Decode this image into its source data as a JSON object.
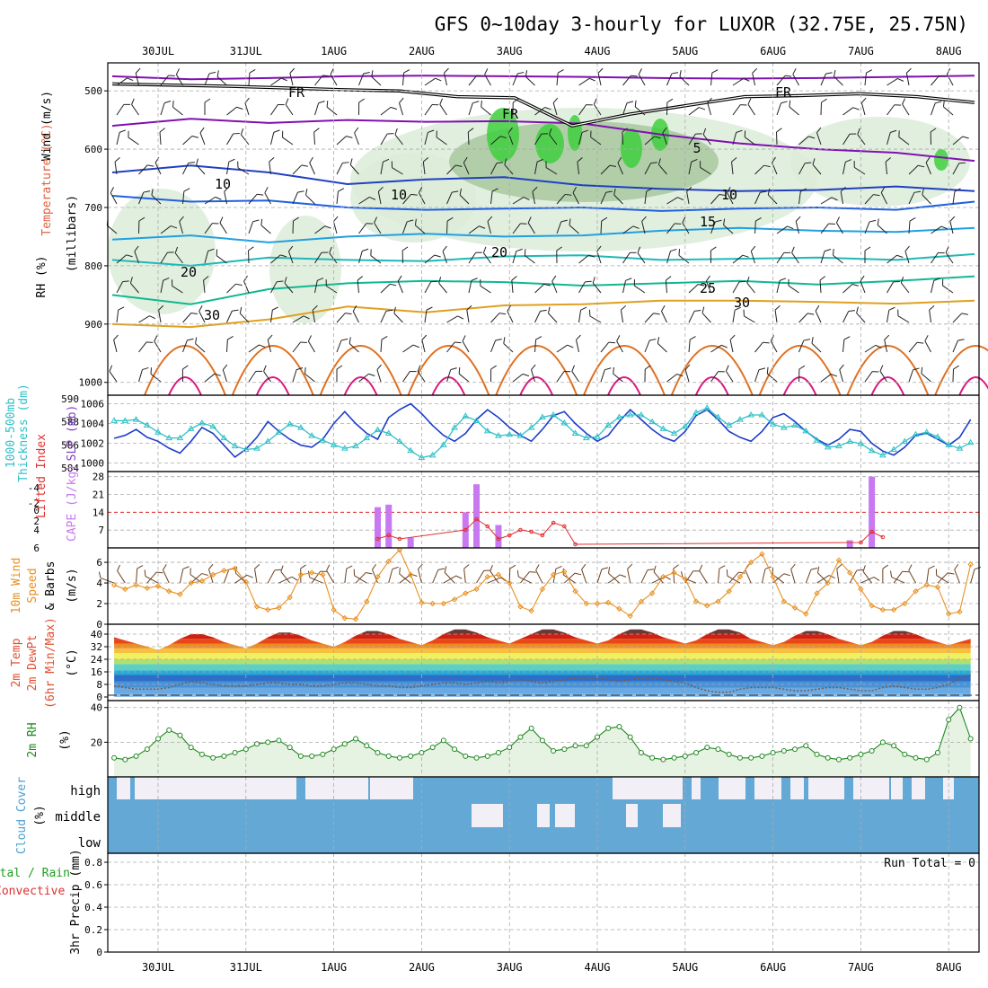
{
  "title": "GFS 0~10day 3-hourly for LUXOR (32.75E, 25.75N)",
  "dates": [
    "30JUL",
    "31JUL",
    "1AUG",
    "2AUG",
    "3AUG",
    "4AUG",
    "5AUG",
    "6AUG",
    "7AUG",
    "8AUG"
  ],
  "colors": {
    "rh_fill": "#dcecd9",
    "rh_fill_mid": "#a8c8a0",
    "rh_fill_high": "#3fcf3f",
    "slp_line": "#1e3ec8",
    "thickness_line": "#30c0c8",
    "cape_bar": "#c878f0",
    "lifted_index": "#e03030",
    "wind_speed": "#e89020",
    "rh2m_line": "#208820",
    "cloud_clear": "#64a8d6",
    "cloud_cover": "#f2f0f6",
    "freezing_level": "#000000"
  },
  "panels": {
    "upper_air": {
      "labels": [
        "Wind (m/s)",
        "Temperature (°C)",
        "RH (%)",
        "(millibars)"
      ],
      "y_ticks": [
        "500",
        "600",
        "700",
        "800",
        "900",
        "1000"
      ],
      "isotherm_labels": [
        "FR",
        "FR",
        "FR",
        "5",
        "10",
        "10",
        "10",
        "15",
        "20",
        "20",
        "25",
        "30",
        "30"
      ]
    },
    "pressure": {
      "labels": [
        "1000-500mb",
        "Thickness (dm)",
        "SLP (mb)"
      ],
      "thickness_ticks": [
        "590",
        "588",
        "586",
        "584"
      ],
      "slp_ticks": [
        "1006",
        "1004",
        "1002",
        "1000"
      ]
    },
    "instability": {
      "labels": [
        "Lifted Index",
        "CAPE (J/kg)"
      ],
      "li_ticks": [
        "-4",
        "-2",
        "0",
        "2",
        "4",
        "6"
      ],
      "cape_ticks": [
        "28",
        "21",
        "14",
        "7"
      ]
    },
    "wind10m": {
      "labels": [
        "10m Wind",
        "Speed",
        "& Barbs",
        "(m/s)"
      ],
      "y_ticks": [
        "6",
        "4",
        "2",
        "0"
      ]
    },
    "temp2m": {
      "labels": [
        "2m Temp",
        "2m DewPt",
        "(6hr Min/Max)",
        "(°C)"
      ],
      "y_ticks": [
        "40",
        "32",
        "24",
        "16",
        "8",
        "0"
      ]
    },
    "rh2m": {
      "labels": [
        "2m RH",
        "(%)"
      ],
      "y_ticks": [
        "40",
        "20"
      ]
    },
    "cloud": {
      "labels": [
        "Cloud Cover",
        "(%)"
      ],
      "levels": [
        "high",
        "middle",
        "low"
      ]
    },
    "precip": {
      "labels": [
        "Total / Rain",
        "Convective",
        "3hr Precip (mm)"
      ],
      "y_ticks": [
        "0.8",
        "0.6",
        "0.4",
        "0.2",
        "0"
      ],
      "run_total": "Run Total = 0"
    }
  },
  "chart_data": [
    {
      "type": "line",
      "title": "1000-500mb Thickness (dm) / SLP (mb)",
      "x": [
        "29JUL12",
        "29JUL15",
        "29JUL18",
        "29JUL21",
        "30JUL00",
        "30JUL03",
        "30JUL06",
        "30JUL09",
        "30JUL12",
        "30JUL15",
        "30JUL18",
        "30JUL21",
        "31JUL00",
        "31JUL03",
        "31JUL06",
        "31JUL09",
        "31JUL12",
        "31JUL15",
        "31JUL18",
        "31JUL21",
        "1AUG00",
        "1AUG03",
        "1AUG06",
        "1AUG09",
        "1AUG12",
        "1AUG15",
        "1AUG18",
        "1AUG21",
        "2AUG00",
        "2AUG03",
        "2AUG06",
        "2AUG09",
        "2AUG12",
        "2AUG15",
        "2AUG18",
        "2AUG21",
        "3AUG00",
        "3AUG03",
        "3AUG06",
        "3AUG09",
        "3AUG12",
        "3AUG15",
        "3AUG18",
        "3AUG21",
        "4AUG00",
        "4AUG03",
        "4AUG06",
        "4AUG09",
        "4AUG12",
        "4AUG15",
        "4AUG18",
        "4AUG21",
        "5AUG00",
        "5AUG03",
        "5AUG06",
        "5AUG09",
        "5AUG12",
        "5AUG15",
        "5AUG18",
        "5AUG21",
        "6AUG00",
        "6AUG03",
        "6AUG06",
        "6AUG09",
        "6AUG12",
        "6AUG15",
        "6AUG18",
        "6AUG21",
        "7AUG00",
        "7AUG03",
        "7AUG06",
        "7AUG09",
        "7AUG12",
        "7AUG15",
        "7AUG18",
        "7AUG21",
        "8AUG00",
        "8AUG03",
        "8AUG06"
      ],
      "series": [
        {
          "name": "SLP (mb)",
          "values": [
            1002.5,
            1002.8,
            1003.4,
            1002.6,
            1002.2,
            1001.5,
            1001.0,
            1002.2,
            1003.6,
            1003.0,
            1001.8,
            1000.6,
            1001.4,
            1002.6,
            1004.2,
            1003.2,
            1002.4,
            1001.8,
            1001.6,
            1002.4,
            1004.0,
            1005.2,
            1004.0,
            1003.0,
            1002.4,
            1004.6,
            1005.4,
            1006.0,
            1005.0,
            1003.8,
            1002.8,
            1002.2,
            1003.0,
            1004.4,
            1005.4,
            1004.6,
            1003.6,
            1002.8,
            1002.2,
            1003.4,
            1004.8,
            1005.2,
            1004.0,
            1003.0,
            1002.2,
            1002.8,
            1004.2,
            1005.4,
            1004.4,
            1003.4,
            1002.6,
            1002.2,
            1003.2,
            1004.8,
            1005.4,
            1004.4,
            1003.2,
            1002.6,
            1002.2,
            1003.2,
            1004.6,
            1005.0,
            1004.2,
            1003.2,
            1002.4,
            1001.8,
            1002.4,
            1003.4,
            1003.2,
            1002.0,
            1001.2,
            1000.8,
            1001.6,
            1002.8,
            1003.0,
            1002.4,
            1001.8,
            1002.6,
            1004.4
          ]
        },
        {
          "name": "1000-500mb Thickness (dm)",
          "values": [
            588.1,
            588.1,
            588.2,
            587.7,
            587.1,
            586.6,
            586.6,
            587.4,
            587.9,
            587.6,
            586.6,
            585.9,
            585.6,
            585.7,
            586.3,
            587.1,
            587.8,
            587.5,
            586.8,
            586.4,
            586.0,
            585.7,
            585.9,
            586.6,
            587.3,
            587.0,
            586.3,
            585.5,
            584.9,
            585.1,
            586.0,
            587.5,
            588.5,
            588.1,
            587.2,
            586.8,
            586.9,
            586.8,
            587.5,
            588.4,
            588.6,
            587.9,
            587.0,
            586.6,
            586.7,
            587.7,
            588.4,
            588.6,
            588.6,
            588.0,
            587.4,
            587.0,
            587.6,
            588.8,
            589.2,
            588.4,
            587.7,
            588.2,
            588.6,
            588.6,
            587.8,
            587.5,
            587.7,
            587.2,
            586.4,
            585.8,
            585.9,
            586.3,
            586.1,
            585.5,
            585.1,
            585.6,
            586.3,
            586.9,
            587.1,
            586.7,
            586.0,
            585.7,
            586.2
          ]
        }
      ],
      "ylabel": "Thickness (dm) / SLP (mb)"
    },
    {
      "type": "bar",
      "title": "CAPE (J/kg)",
      "x": [
        "2AUG12",
        "2AUG15",
        "2AUG21",
        "3AUG12",
        "3AUG15",
        "3AUG21",
        "8AUG00",
        "8AUG03"
      ],
      "values": [
        16,
        17,
        4,
        14,
        25,
        9,
        3,
        28
      ],
      "ylim": [
        0,
        28
      ]
    },
    {
      "type": "line",
      "title": "10m Wind Speed (m/s)",
      "x": [
        "29JUL12",
        "29JUL15",
        "29JUL18",
        "29JUL21",
        "30JUL00",
        "30JUL03",
        "30JUL06",
        "30JUL09",
        "30JUL12",
        "30JUL15",
        "30JUL18",
        "30JUL21",
        "31JUL00",
        "31JUL03",
        "31JUL06",
        "31JUL09",
        "31JUL12",
        "31JUL15",
        "31JUL18",
        "31JUL21",
        "1AUG00",
        "1AUG03",
        "1AUG06",
        "1AUG09",
        "1AUG12",
        "1AUG15",
        "1AUG18",
        "1AUG21",
        "2AUG00",
        "2AUG03",
        "2AUG06",
        "2AUG09",
        "2AUG12",
        "2AUG15",
        "2AUG18",
        "2AUG21",
        "3AUG00",
        "3AUG03",
        "3AUG06",
        "3AUG09",
        "3AUG12",
        "3AUG15",
        "3AUG18",
        "3AUG21",
        "4AUG00",
        "4AUG03",
        "4AUG06",
        "4AUG09",
        "4AUG12",
        "4AUG15",
        "4AUG18",
        "4AUG21",
        "5AUG00",
        "5AUG03",
        "5AUG06",
        "5AUG09",
        "5AUG12",
        "5AUG15",
        "5AUG18",
        "5AUG21",
        "6AUG00",
        "6AUG03",
        "6AUG06",
        "6AUG09",
        "6AUG12",
        "6AUG15",
        "6AUG18",
        "6AUG21",
        "7AUG00",
        "7AUG03",
        "7AUG06",
        "7AUG09",
        "7AUG12",
        "7AUG15",
        "7AUG18",
        "7AUG21",
        "8AUG00",
        "8AUG03",
        "8AUG06"
      ],
      "values": [
        3.8,
        3.4,
        3.8,
        3.5,
        3.7,
        3.2,
        2.9,
        4.0,
        4.2,
        4.8,
        5.2,
        5.4,
        4.1,
        1.7,
        1.4,
        1.6,
        2.6,
        4.8,
        5.0,
        4.8,
        1.4,
        0.6,
        0.5,
        2.2,
        4.6,
        6.1,
        7.2,
        4.8,
        2.1,
        2.0,
        2.0,
        2.4,
        3.0,
        3.4,
        4.6,
        4.8,
        4.0,
        1.7,
        1.3,
        3.4,
        4.8,
        5.1,
        3.2,
        2.0,
        2.0,
        2.1,
        1.5,
        0.8,
        2.2,
        3.0,
        4.6,
        5.0,
        4.4,
        2.2,
        1.8,
        2.2,
        3.2,
        4.6,
        6.0,
        6.8,
        4.6,
        2.2,
        1.6,
        1.0,
        3.0,
        4.0,
        6.2,
        5.0,
        3.4,
        1.8,
        1.4,
        1.4,
        2.0,
        3.2,
        3.8,
        3.6,
        1.0,
        1.2,
        5.8
      ],
      "ylim": [
        0,
        7
      ]
    },
    {
      "type": "line",
      "title": "2m Temp / 2m DewPt (°C)",
      "x": [
        "29JUL12",
        "29JUL15",
        "29JUL18",
        "29JUL21",
        "30JUL00",
        "30JUL03",
        "30JUL06",
        "30JUL09",
        "30JUL12",
        "30JUL15",
        "30JUL18",
        "30JUL21",
        "31JUL00",
        "31JUL03",
        "31JUL06",
        "31JUL09",
        "31JUL12",
        "31JUL15",
        "31JUL18",
        "31JUL21",
        "1AUG00",
        "1AUG03",
        "1AUG06",
        "1AUG09",
        "1AUG12",
        "1AUG15",
        "1AUG18",
        "1AUG21",
        "2AUG00",
        "2AUG03",
        "2AUG06",
        "2AUG09",
        "2AUG12",
        "2AUG15",
        "2AUG18",
        "2AUG21",
        "3AUG00",
        "3AUG03",
        "3AUG06",
        "3AUG09",
        "3AUG12",
        "3AUG15",
        "3AUG18",
        "3AUG21",
        "4AUG00",
        "4AUG03",
        "4AUG06",
        "4AUG09",
        "4AUG12",
        "4AUG15",
        "4AUG18",
        "4AUG21",
        "5AUG00",
        "5AUG03",
        "5AUG06",
        "5AUG09",
        "5AUG12",
        "5AUG15",
        "5AUG18",
        "5AUG21",
        "6AUG00",
        "6AUG03",
        "6AUG06",
        "6AUG09",
        "6AUG12",
        "6AUG15",
        "6AUG18",
        "6AUG21",
        "7AUG00",
        "7AUG03",
        "7AUG06",
        "7AUG09",
        "7AUG12",
        "7AUG15",
        "7AUG18",
        "7AUG21",
        "8AUG00",
        "8AUG03",
        "8AUG06"
      ],
      "series": [
        {
          "name": "2m Temp",
          "values": [
            38,
            36,
            34,
            32,
            30,
            33,
            37,
            40,
            40,
            38,
            35,
            33,
            31,
            34,
            38,
            41,
            41,
            39,
            36,
            34,
            32,
            35,
            39,
            42,
            42,
            40,
            37,
            35,
            33,
            36,
            40,
            43,
            43,
            41,
            38,
            36,
            34,
            37,
            40,
            43,
            43,
            41,
            38,
            36,
            34,
            36,
            40,
            43,
            43,
            41,
            38,
            36,
            34,
            36,
            40,
            43,
            43,
            41,
            37,
            35,
            33,
            35,
            39,
            42,
            42,
            40,
            37,
            35,
            33,
            35,
            39,
            42,
            42,
            40,
            37,
            35,
            33,
            35,
            37
          ]
        },
        {
          "name": "2m DewPt",
          "values": [
            7,
            6,
            5,
            5,
            5,
            6,
            8,
            10,
            9,
            8,
            7,
            7,
            7,
            8,
            9,
            9,
            8,
            8,
            7,
            7,
            8,
            9,
            9,
            8,
            7,
            7,
            6,
            6,
            7,
            8,
            9,
            9,
            8,
            9,
            10,
            9,
            10,
            11,
            10,
            9,
            10,
            11,
            12,
            12,
            12,
            11,
            10,
            11,
            12,
            12,
            11,
            10,
            9,
            6,
            4,
            3,
            3,
            5,
            6,
            6,
            6,
            5,
            4,
            4,
            5,
            6,
            6,
            5,
            4,
            4,
            6,
            7,
            6,
            5,
            5,
            6,
            8,
            12,
            14
          ]
        }
      ],
      "ylim": [
        0,
        44
      ]
    },
    {
      "type": "line",
      "title": "2m RH (%)",
      "x": [
        "29JUL12",
        "29JUL15",
        "29JUL18",
        "29JUL21",
        "30JUL00",
        "30JUL03",
        "30JUL06",
        "30JUL09",
        "30JUL12",
        "30JUL15",
        "30JUL18",
        "30JUL21",
        "31JUL00",
        "31JUL03",
        "31JUL06",
        "31JUL09",
        "31JUL12",
        "31JUL15",
        "31JUL18",
        "31JUL21",
        "1AUG00",
        "1AUG03",
        "1AUG06",
        "1AUG09",
        "1AUG12",
        "1AUG15",
        "1AUG18",
        "1AUG21",
        "2AUG00",
        "2AUG03",
        "2AUG06",
        "2AUG09",
        "2AUG12",
        "2AUG15",
        "2AUG18",
        "2AUG21",
        "3AUG00",
        "3AUG03",
        "3AUG06",
        "3AUG09",
        "3AUG12",
        "3AUG15",
        "3AUG18",
        "3AUG21",
        "4AUG00",
        "4AUG03",
        "4AUG06",
        "4AUG09",
        "4AUG12",
        "4AUG15",
        "4AUG18",
        "4AUG21",
        "5AUG00",
        "5AUG03",
        "5AUG06",
        "5AUG09",
        "5AUG12",
        "5AUG15",
        "5AUG18",
        "5AUG21",
        "6AUG00",
        "6AUG03",
        "6AUG06",
        "6AUG09",
        "6AUG12",
        "6AUG15",
        "6AUG18",
        "6AUG21",
        "7AUG00",
        "7AUG03",
        "7AUG06",
        "7AUG09",
        "7AUG12",
        "7AUG15",
        "7AUG18",
        "7AUG21",
        "8AUG00",
        "8AUG03",
        "8AUG06"
      ],
      "values": [
        11,
        10,
        12,
        16,
        22,
        27,
        24,
        17,
        13,
        11,
        12,
        14,
        16,
        19,
        20,
        21,
        17,
        12,
        12,
        13,
        16,
        19,
        22,
        18,
        14,
        12,
        11,
        12,
        14,
        17,
        21,
        16,
        12,
        11,
        12,
        14,
        17,
        23,
        28,
        21,
        15,
        16,
        18,
        18,
        23,
        28,
        29,
        23,
        14,
        11,
        10,
        11,
        12,
        14,
        17,
        16,
        13,
        11,
        11,
        12,
        14,
        15,
        16,
        18,
        13,
        11,
        10,
        11,
        13,
        15,
        20,
        18,
        13,
        11,
        10,
        14,
        33,
        40,
        22
      ],
      "ylim": [
        0,
        40
      ]
    }
  ]
}
